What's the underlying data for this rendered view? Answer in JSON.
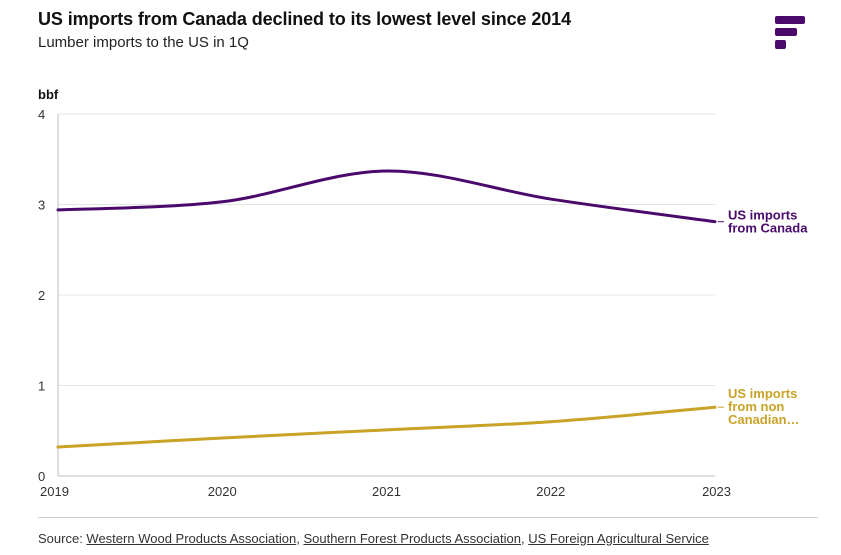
{
  "header": {
    "title": "US imports from Canada declined to its lowest level since 2014",
    "subtitle": "Lumber imports to the US in 1Q",
    "logo_icon": "brand-f-logo-icon"
  },
  "colors": {
    "canada": "#4a0a6b",
    "non_canadian": "#c9a227",
    "grid": "#e4e4e4",
    "axis": "#bdbdbd"
  },
  "chart_data": {
    "type": "line",
    "ylabel": "bbf",
    "xlabel": "",
    "x": [
      2019,
      2020,
      2021,
      2022,
      2023
    ],
    "xtick_labels": [
      "2019",
      "2020",
      "2021",
      "2022",
      "2023"
    ],
    "ylim": [
      0,
      4
    ],
    "yticks": [
      0,
      1,
      2,
      3,
      4
    ],
    "ytick_labels": [
      "0",
      "1",
      "2",
      "3",
      "4"
    ],
    "grid": "horizontal",
    "series": [
      {
        "name_lines": [
          "US imports",
          "from Canada"
        ],
        "values": [
          2.94,
          3.03,
          3.37,
          3.06,
          2.81
        ],
        "color": "#4a0a6b"
      },
      {
        "name_lines": [
          "US imports",
          "from non",
          "Canadian…"
        ],
        "values": [
          0.32,
          0.42,
          0.51,
          0.6,
          0.76
        ],
        "color": "#c9a227"
      }
    ]
  },
  "footer": {
    "source_prefix": "Source: ",
    "sources": [
      "Western Wood Products Association",
      "Southern Forest Products Association",
      "US Foreign Agricultural Service"
    ],
    "separator": ", "
  }
}
